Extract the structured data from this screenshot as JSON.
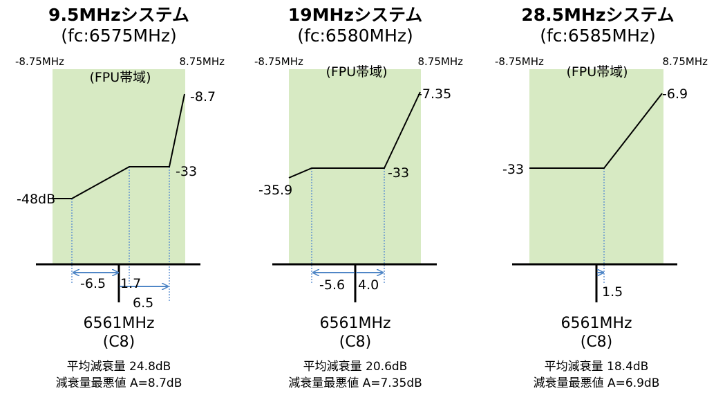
{
  "panels": [
    {
      "title": "9.5MHzシステム",
      "fc": "(fc:6575MHz)",
      "edge_left": "-8.75MHz",
      "edge_right": "8.75MHz",
      "band_label": "(FPU帯域)",
      "level_labels": [
        "-48dB",
        "-33",
        "-8.7"
      ],
      "offset_labels": [
        "-6.5",
        "1.7",
        "6.5"
      ],
      "channel_freq": "6561MHz",
      "channel_name": "(C8)",
      "avg_attenuation": "平均減衰量 24.8dB",
      "worst_attenuation": "減衰量最悪値 A=8.7dB"
    },
    {
      "title": "19MHzシステム",
      "fc": "(fc:6580MHz)",
      "edge_left": "-8.75MHz",
      "edge_right": "8.75MHz",
      "band_label": "(FPU帯域)",
      "level_labels": [
        "-35.9",
        "-33",
        "-7.35"
      ],
      "offset_labels": [
        "-5.6",
        "4.0"
      ],
      "channel_freq": "6561MHz",
      "channel_name": "(C8)",
      "avg_attenuation": "平均減衰量 20.6dB",
      "worst_attenuation": "減衰量最悪値 A=7.35dB"
    },
    {
      "title": "28.5MHzシステム",
      "fc": "(fc:6585MHz)",
      "edge_left": "-8.75MHz",
      "edge_right": "8.75MHz",
      "band_label": "(FPU帯域)",
      "level_labels": [
        "-33",
        "-6.9"
      ],
      "offset_labels": [
        "1.5"
      ],
      "channel_freq": "6561MHz",
      "channel_name": "(C8)",
      "avg_attenuation": "平均減衰量 18.4dB",
      "worst_attenuation": "減衰量最悪値 A=6.9dB"
    }
  ],
  "colors": {
    "band_fill": "#d7eac3",
    "guide_line": "#5b8fd0",
    "arrow": "#4f86c6",
    "mask_line": "#000000"
  }
}
